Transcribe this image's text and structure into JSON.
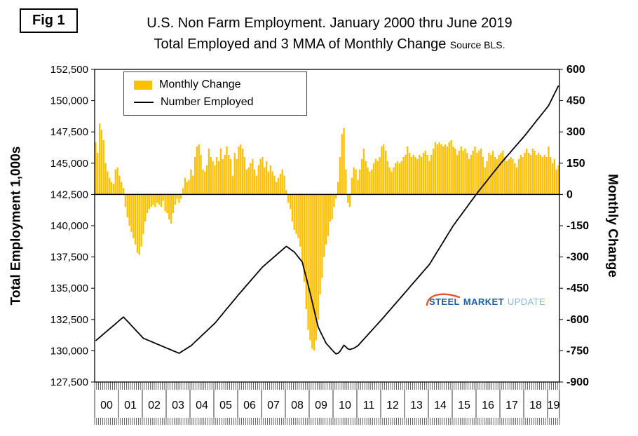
{
  "fig_label": "Fig 1",
  "title": {
    "line1": "U.S. Non Farm Employment. January 2000 thru June 2019",
    "line2": "Total Employed and 3 MMA of Monthly Change",
    "source": "Source BLS."
  },
  "legend": {
    "bar_label": "Monthly Change",
    "line_label": "Number Employed"
  },
  "watermark": {
    "word1": "STEEL",
    "word2": "MARKET",
    "word3": "UPDATE"
  },
  "colors": {
    "bar": "#FFC000",
    "line": "#000000",
    "axis": "#000000",
    "watermark_dark": "#1A5DA6",
    "watermark_light": "#8FB4DC",
    "watermark_swoosh": "#E2552D"
  },
  "chart_data": {
    "type": "combo",
    "frequency": "monthly",
    "period": "January 2000 - June 2019",
    "months_count": 234,
    "x_year_labels": [
      "00",
      "01",
      "02",
      "03",
      "04",
      "05",
      "06",
      "07",
      "08",
      "09",
      "10",
      "11",
      "12",
      "13",
      "14",
      "15",
      "16",
      "17",
      "18",
      "19"
    ],
    "left_axis": {
      "title": "Total Employment 1,000s",
      "min": 127500,
      "max": 152500,
      "step": 2500,
      "tick_labels": [
        "152,500",
        "150,000",
        "147,500",
        "145,000",
        "142,500",
        "140,000",
        "137,500",
        "135,000",
        "132,500",
        "130,000",
        "127,500"
      ]
    },
    "right_axis": {
      "title": "Monthly Change",
      "min": -900,
      "max": 600,
      "step": 150,
      "tick_labels": [
        "600",
        "450",
        "300",
        "150",
        "0",
        "-150",
        "-300",
        "-450",
        "-600",
        "-750",
        "-900"
      ]
    },
    "series": [
      {
        "name": "Monthly Change",
        "type": "bar",
        "axis": "right",
        "color": "#FFC000",
        "values": [
          250,
          200,
          340,
          310,
          260,
          150,
          110,
          80,
          60,
          50,
          120,
          130,
          90,
          60,
          30,
          -60,
          -110,
          -150,
          -180,
          -210,
          -240,
          -280,
          -290,
          -250,
          -190,
          -130,
          -90,
          -70,
          -60,
          -50,
          -60,
          -40,
          -50,
          -60,
          -30,
          -80,
          -90,
          -120,
          -140,
          -90,
          -50,
          -20,
          -40,
          -20,
          30,
          80,
          60,
          70,
          120,
          90,
          180,
          230,
          240,
          190,
          120,
          110,
          140,
          220,
          180,
          160,
          140,
          180,
          160,
          220,
          170,
          190,
          230,
          190,
          170,
          90,
          200,
          170,
          230,
          240,
          220,
          180,
          120,
          130,
          150,
          170,
          120,
          90,
          140,
          170,
          180,
          130,
          160,
          110,
          140,
          110,
          90,
          60,
          80,
          100,
          120,
          90,
          20,
          -40,
          -70,
          -130,
          -170,
          -190,
          -210,
          -250,
          -320,
          -420,
          -550,
          -650,
          -700,
          -740,
          -750,
          -700,
          -600,
          -480,
          -400,
          -300,
          -240,
          -200,
          -130,
          -120,
          -60,
          -20,
          60,
          180,
          290,
          320,
          120,
          -40,
          -60,
          80,
          130,
          120,
          70,
          120,
          170,
          220,
          160,
          130,
          110,
          120,
          150,
          170,
          160,
          180,
          230,
          240,
          210,
          160,
          130,
          110,
          130,
          150,
          160,
          150,
          160,
          180,
          190,
          230,
          200,
          180,
          190,
          180,
          170,
          190,
          180,
          200,
          210,
          190,
          160,
          190,
          220,
          250,
          240,
          250,
          240,
          230,
          240,
          230,
          250,
          260,
          230,
          220,
          190,
          210,
          230,
          210,
          220,
          200,
          170,
          190,
          210,
          230,
          200,
          210,
          220,
          180,
          130,
          160,
          200,
          190,
          210,
          180,
          170,
          190,
          200,
          210,
          180,
          160,
          170,
          180,
          170,
          150,
          130,
          170,
          190,
          180,
          200,
          220,
          200,
          190,
          220,
          210,
          190,
          200,
          190,
          180,
          190,
          180,
          230,
          180,
          150,
          170,
          120,
          140
        ]
      },
      {
        "name": "Number Employed",
        "type": "line",
        "axis": "left",
        "color": "#000000",
        "values": [
          130800,
          130935,
          131070,
          131205,
          131345,
          131480,
          131615,
          131750,
          131885,
          132020,
          132155,
          132295,
          132430,
          132565,
          132700,
          132530,
          132360,
          132190,
          132020,
          131850,
          131680,
          131510,
          131340,
          131170,
          131000,
          130935,
          130870,
          130800,
          130735,
          130665,
          130600,
          130535,
          130465,
          130400,
          130335,
          130265,
          130200,
          130135,
          130065,
          130000,
          129935,
          129865,
          129800,
          129900,
          130000,
          130100,
          130200,
          130300,
          130400,
          130550,
          130700,
          130850,
          131000,
          131150,
          131300,
          131450,
          131600,
          131750,
          131900,
          132050,
          132200,
          132390,
          132580,
          132775,
          132965,
          133160,
          133350,
          133540,
          133735,
          133925,
          134115,
          134310,
          134500,
          134685,
          134865,
          135050,
          135235,
          135415,
          135600,
          135785,
          135965,
          136150,
          136335,
          136515,
          136700,
          136840,
          136975,
          137115,
          137250,
          137390,
          137525,
          137665,
          137800,
          137940,
          138075,
          138215,
          138350,
          138240,
          138125,
          138010,
          137900,
          137700,
          137500,
          137300,
          137100,
          136475,
          135850,
          135225,
          134600,
          133925,
          133250,
          132575,
          131900,
          131575,
          131250,
          130925,
          130600,
          130425,
          130250,
          130075,
          129900,
          129750,
          129800,
          129950,
          130200,
          130450,
          130300,
          130150,
          130100,
          130150,
          130200,
          130300,
          130400,
          130575,
          130750,
          130925,
          131100,
          131275,
          131450,
          131625,
          131800,
          131975,
          132150,
          132325,
          132500,
          132685,
          132865,
          133050,
          133235,
          133415,
          133600,
          133785,
          133965,
          134150,
          134335,
          134515,
          134700,
          134885,
          135065,
          135250,
          135435,
          135615,
          135800,
          135985,
          136165,
          136350,
          136535,
          136715,
          136900,
          137160,
          137415,
          137675,
          137935,
          138190,
          138450,
          138710,
          138965,
          139225,
          139485,
          139740,
          140000,
          140215,
          140435,
          140650,
          140865,
          141085,
          141300,
          141515,
          141735,
          141950,
          142165,
          142385,
          142600,
          142800,
          143000,
          143200,
          143400,
          143600,
          143800,
          144000,
          144200,
          144400,
          144600,
          144800,
          145000,
          145185,
          145365,
          145550,
          145735,
          145915,
          146100,
          146285,
          146465,
          146650,
          146835,
          147015,
          147200,
          147400,
          147600,
          147800,
          148000,
          148200,
          148400,
          148600,
          148800,
          149000,
          149200,
          149400,
          149600,
          149920,
          150240,
          150560,
          150880,
          151200
        ]
      }
    ]
  }
}
